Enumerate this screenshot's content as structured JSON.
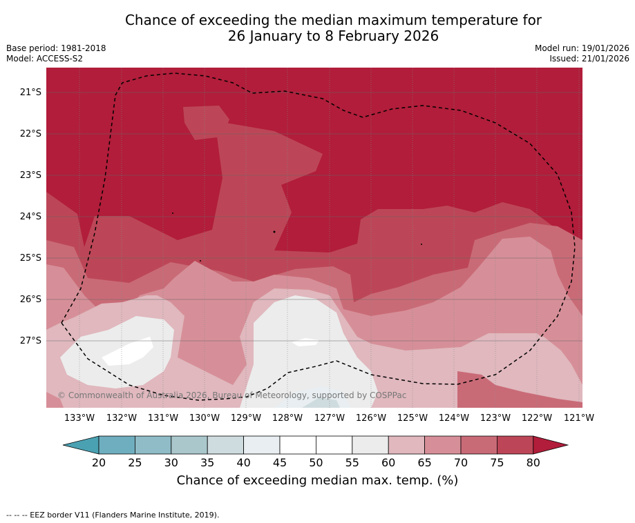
{
  "title": {
    "line1": "Chance of exceeding the median maximum temperature for",
    "line2": "26 January to 8 February 2026"
  },
  "meta_left": {
    "base_period": "Base period: 1981-2018",
    "model": "Model: ACCESS-S2"
  },
  "meta_right": {
    "model_run": "Model run: 19/01/2026",
    "issued": "Issued: 21/01/2026"
  },
  "map": {
    "latitude_labels": [
      "21°S",
      "22°S",
      "23°S",
      "24°S",
      "25°S",
      "26°S",
      "27°S"
    ],
    "longitude_labels": [
      "133°W",
      "132°W",
      "131°W",
      "130°W",
      "129°W",
      "128°W",
      "127°W",
      "126°W",
      "125°W",
      "124°W",
      "123°W",
      "122°W",
      "121°W"
    ],
    "credit": "© Commonwealth of Australia 2026, Bureau of Meteorology, supported by COSPPac",
    "eez_color": "#000000"
  },
  "colorbar": {
    "ticks": [
      "20",
      "25",
      "30",
      "35",
      "40",
      "45",
      "50",
      "55",
      "60",
      "65",
      "70",
      "75",
      "80"
    ],
    "colors": [
      "#4aa1b2",
      "#6faebf",
      "#8fbcc6",
      "#aac7cc",
      "#cfdcdf",
      "#e8eef1",
      "#ffffff",
      "#ffffff",
      "#ececec",
      "#e0b8be",
      "#d68f98",
      "#c96b77",
      "#bc4657",
      "#b11d3a"
    ],
    "label": "Chance of exceeding median max. temp. (%)"
  },
  "footer": {
    "legend_text": "-- -- -- EEZ border V11 (Flanders Marine Institute, 2019)."
  }
}
